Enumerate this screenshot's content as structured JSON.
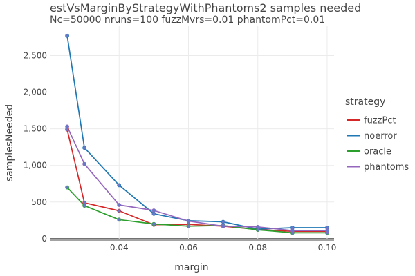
{
  "chart_data": {
    "type": "line",
    "title": "estVsMarginByStrategyWithPhantoms2 samples needed",
    "subtitle": "Nc=50000 nruns=100 fuzzMvrs=0.01 phantomPct=0.01",
    "xlabel": "margin",
    "ylabel": "samplesNeeded",
    "xlim": [
      0.02,
      0.102
    ],
    "ylim": [
      -20,
      2900
    ],
    "x_ticks": [
      0.04,
      0.06,
      0.08,
      0.1
    ],
    "x_tick_labels": [
      "0.04",
      "0.06",
      "0.08",
      "0.10"
    ],
    "y_ticks": [
      0,
      500,
      1000,
      1500,
      2000,
      2500
    ],
    "y_tick_labels": [
      "0",
      "500",
      "1,000",
      "1,500",
      "2,000",
      "2,500"
    ],
    "grid": true,
    "legend_title": "strategy",
    "legend_position": "right",
    "x": [
      0.025,
      0.03,
      0.04,
      0.05,
      0.06,
      0.07,
      0.08,
      0.09,
      0.1
    ],
    "series": [
      {
        "name": "fuzzPct",
        "color": "#d62728",
        "values": [
          1490,
          490,
          380,
          190,
          195,
          170,
          125,
          100,
          100
        ]
      },
      {
        "name": "noerror",
        "color": "#1f77b4",
        "values": [
          2770,
          1240,
          730,
          340,
          245,
          230,
          130,
          150,
          150
        ]
      },
      {
        "name": "oracle",
        "color": "#2ca02c",
        "values": [
          700,
          450,
          260,
          200,
          170,
          180,
          120,
          80,
          80
        ]
      },
      {
        "name": "phantoms",
        "color": "#9467bd",
        "values": [
          1530,
          1020,
          460,
          385,
          240,
          170,
          160,
          110,
          110
        ]
      }
    ],
    "marker_color": "#6678c8"
  }
}
